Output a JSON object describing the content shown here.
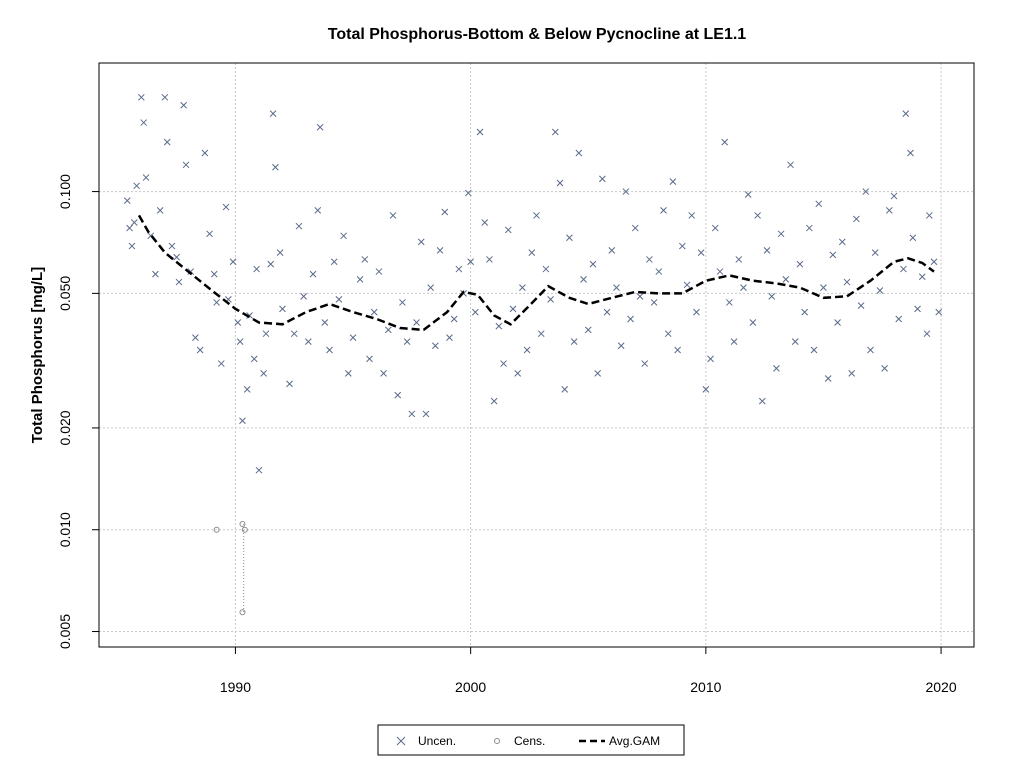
{
  "chart_data": {
    "type": "scatter",
    "title": "Total Phosphorus-Bottom & Below Pycnocline at LE1.1",
    "xlabel": "",
    "ylabel": "Total Phosphorus [mg/L]",
    "ylog": true,
    "xlim": [
      1984.2,
      2021.4
    ],
    "ylim": [
      0.0045,
      0.24
    ],
    "xticks": [
      1990,
      2000,
      2010,
      2020
    ],
    "xtick_labels": [
      "1990",
      "2000",
      "2010",
      "2020"
    ],
    "yticks": [
      0.005,
      0.01,
      0.02,
      0.05,
      0.1
    ],
    "ytick_labels": [
      "0.005",
      "0.010",
      "0.020",
      "0.050",
      "0.100"
    ],
    "grid": true,
    "legend": {
      "position": "bottom-center",
      "entries": [
        "Uncen.",
        "Cens.",
        "Avg.GAM"
      ]
    },
    "colors": {
      "uncensored": "#5a6a8a",
      "censored": "#8a8a8a",
      "gam": "#000000",
      "grid": "#c8c8c8"
    },
    "series": [
      {
        "name": "Uncen.",
        "marker": "x",
        "points": [
          [
            1985.4,
            0.094
          ],
          [
            1985.5,
            0.078
          ],
          [
            1985.6,
            0.069
          ],
          [
            1985.7,
            0.081
          ],
          [
            1985.8,
            0.104
          ],
          [
            1986.0,
            0.19
          ],
          [
            1986.1,
            0.16
          ],
          [
            1986.2,
            0.11
          ],
          [
            1986.4,
            0.074
          ],
          [
            1986.6,
            0.057
          ],
          [
            1986.8,
            0.088
          ],
          [
            1987.0,
            0.19
          ],
          [
            1987.1,
            0.14
          ],
          [
            1987.3,
            0.069
          ],
          [
            1987.5,
            0.064
          ],
          [
            1987.6,
            0.054
          ],
          [
            1987.8,
            0.18
          ],
          [
            1987.9,
            0.12
          ],
          [
            1988.1,
            0.058
          ],
          [
            1988.3,
            0.037
          ],
          [
            1988.5,
            0.034
          ],
          [
            1988.7,
            0.13
          ],
          [
            1988.9,
            0.075
          ],
          [
            1989.1,
            0.057
          ],
          [
            1989.2,
            0.047
          ],
          [
            1989.4,
            0.031
          ],
          [
            1989.6,
            0.09
          ],
          [
            1989.7,
            0.048
          ],
          [
            1989.9,
            0.062
          ],
          [
            1990.1,
            0.041
          ],
          [
            1990.2,
            0.036
          ],
          [
            1990.3,
            0.021
          ],
          [
            1990.5,
            0.026
          ],
          [
            1990.6,
            0.043
          ],
          [
            1990.8,
            0.032
          ],
          [
            1990.9,
            0.059
          ],
          [
            1991.0,
            0.015
          ],
          [
            1991.2,
            0.029
          ],
          [
            1991.3,
            0.038
          ],
          [
            1991.5,
            0.061
          ],
          [
            1991.6,
            0.17
          ],
          [
            1991.7,
            0.118
          ],
          [
            1991.9,
            0.066
          ],
          [
            1992.0,
            0.045
          ],
          [
            1992.3,
            0.027
          ],
          [
            1992.5,
            0.038
          ],
          [
            1992.7,
            0.079
          ],
          [
            1992.9,
            0.049
          ],
          [
            1993.1,
            0.036
          ],
          [
            1993.3,
            0.057
          ],
          [
            1993.5,
            0.088
          ],
          [
            1993.6,
            0.155
          ],
          [
            1993.8,
            0.041
          ],
          [
            1994.0,
            0.034
          ],
          [
            1994.2,
            0.062
          ],
          [
            1994.4,
            0.048
          ],
          [
            1994.6,
            0.074
          ],
          [
            1994.8,
            0.029
          ],
          [
            1995.0,
            0.037
          ],
          [
            1995.3,
            0.055
          ],
          [
            1995.5,
            0.063
          ],
          [
            1995.7,
            0.032
          ],
          [
            1995.9,
            0.044
          ],
          [
            1996.1,
            0.058
          ],
          [
            1996.3,
            0.029
          ],
          [
            1996.5,
            0.039
          ],
          [
            1996.7,
            0.085
          ],
          [
            1996.9,
            0.025
          ],
          [
            1997.1,
            0.047
          ],
          [
            1997.3,
            0.036
          ],
          [
            1997.5,
            0.022
          ],
          [
            1997.7,
            0.041
          ],
          [
            1997.9,
            0.071
          ],
          [
            1998.1,
            0.022
          ],
          [
            1998.3,
            0.052
          ],
          [
            1998.5,
            0.035
          ],
          [
            1998.7,
            0.067
          ],
          [
            1998.9,
            0.087
          ],
          [
            1999.1,
            0.037
          ],
          [
            1999.3,
            0.042
          ],
          [
            1999.5,
            0.059
          ],
          [
            1999.7,
            0.05
          ],
          [
            1999.9,
            0.099
          ],
          [
            2000.0,
            0.062
          ],
          [
            2000.2,
            0.044
          ],
          [
            2000.4,
            0.15
          ],
          [
            2000.6,
            0.081
          ],
          [
            2000.8,
            0.063
          ],
          [
            2001.0,
            0.024
          ],
          [
            2001.2,
            0.04
          ],
          [
            2001.4,
            0.031
          ],
          [
            2001.6,
            0.077
          ],
          [
            2001.8,
            0.045
          ],
          [
            2002.0,
            0.029
          ],
          [
            2002.2,
            0.052
          ],
          [
            2002.4,
            0.034
          ],
          [
            2002.6,
            0.066
          ],
          [
            2002.8,
            0.085
          ],
          [
            2003.0,
            0.038
          ],
          [
            2003.2,
            0.059
          ],
          [
            2003.4,
            0.048
          ],
          [
            2003.6,
            0.15
          ],
          [
            2003.8,
            0.106
          ],
          [
            2004.0,
            0.026
          ],
          [
            2004.2,
            0.073
          ],
          [
            2004.4,
            0.036
          ],
          [
            2004.6,
            0.13
          ],
          [
            2004.8,
            0.055
          ],
          [
            2005.0,
            0.039
          ],
          [
            2005.2,
            0.061
          ],
          [
            2005.4,
            0.029
          ],
          [
            2005.6,
            0.109
          ],
          [
            2005.8,
            0.044
          ],
          [
            2006.0,
            0.067
          ],
          [
            2006.2,
            0.052
          ],
          [
            2006.4,
            0.035
          ],
          [
            2006.6,
            0.1
          ],
          [
            2006.8,
            0.042
          ],
          [
            2007.0,
            0.078
          ],
          [
            2007.2,
            0.049
          ],
          [
            2007.4,
            0.031
          ],
          [
            2007.6,
            0.063
          ],
          [
            2007.8,
            0.047
          ],
          [
            2008.0,
            0.058
          ],
          [
            2008.2,
            0.088
          ],
          [
            2008.4,
            0.038
          ],
          [
            2008.6,
            0.107
          ],
          [
            2008.8,
            0.034
          ],
          [
            2009.0,
            0.069
          ],
          [
            2009.2,
            0.053
          ],
          [
            2009.4,
            0.085
          ],
          [
            2009.6,
            0.044
          ],
          [
            2009.8,
            0.066
          ],
          [
            2010.0,
            0.026
          ],
          [
            2010.2,
            0.032
          ],
          [
            2010.4,
            0.078
          ],
          [
            2010.6,
            0.058
          ],
          [
            2010.8,
            0.14
          ],
          [
            2011.0,
            0.047
          ],
          [
            2011.2,
            0.036
          ],
          [
            2011.4,
            0.063
          ],
          [
            2011.6,
            0.052
          ],
          [
            2011.8,
            0.098
          ],
          [
            2012.0,
            0.041
          ],
          [
            2012.2,
            0.085
          ],
          [
            2012.4,
            0.024
          ],
          [
            2012.6,
            0.067
          ],
          [
            2012.8,
            0.049
          ],
          [
            2013.0,
            0.03
          ],
          [
            2013.2,
            0.075
          ],
          [
            2013.4,
            0.055
          ],
          [
            2013.6,
            0.12
          ],
          [
            2013.8,
            0.036
          ],
          [
            2014.0,
            0.061
          ],
          [
            2014.2,
            0.044
          ],
          [
            2014.4,
            0.078
          ],
          [
            2014.6,
            0.034
          ],
          [
            2014.8,
            0.092
          ],
          [
            2015.0,
            0.052
          ],
          [
            2015.2,
            0.028
          ],
          [
            2015.4,
            0.065
          ],
          [
            2015.6,
            0.041
          ],
          [
            2015.8,
            0.071
          ],
          [
            2016.0,
            0.054
          ],
          [
            2016.2,
            0.029
          ],
          [
            2016.4,
            0.083
          ],
          [
            2016.6,
            0.046
          ],
          [
            2016.8,
            0.1
          ],
          [
            2017.0,
            0.034
          ],
          [
            2017.2,
            0.066
          ],
          [
            2017.4,
            0.051
          ],
          [
            2017.6,
            0.03
          ],
          [
            2017.8,
            0.088
          ],
          [
            2018.0,
            0.097
          ],
          [
            2018.2,
            0.042
          ],
          [
            2018.4,
            0.059
          ],
          [
            2018.5,
            0.17
          ],
          [
            2018.7,
            0.13
          ],
          [
            2018.8,
            0.073
          ],
          [
            2019.0,
            0.045
          ],
          [
            2019.2,
            0.056
          ],
          [
            2019.4,
            0.038
          ],
          [
            2019.5,
            0.085
          ],
          [
            2019.7,
            0.062
          ],
          [
            2019.9,
            0.044
          ]
        ]
      },
      {
        "name": "Cens.",
        "marker": "o",
        "points": [
          [
            1989.2,
            0.01
          ],
          [
            1990.3,
            0.0104
          ],
          [
            1990.4,
            0.01
          ],
          [
            1990.3,
            0.0057
          ]
        ]
      },
      {
        "name": "Avg.GAM",
        "type": "line",
        "points": [
          [
            1985.9,
            0.085
          ],
          [
            1986.3,
            0.076
          ],
          [
            1987.0,
            0.066
          ],
          [
            1988.0,
            0.058
          ],
          [
            1989.0,
            0.051
          ],
          [
            1990.0,
            0.045
          ],
          [
            1991.0,
            0.041
          ],
          [
            1992.0,
            0.0405
          ],
          [
            1993.0,
            0.044
          ],
          [
            1994.0,
            0.0465
          ],
          [
            1995.0,
            0.044
          ],
          [
            1996.0,
            0.042
          ],
          [
            1997.0,
            0.0395
          ],
          [
            1998.0,
            0.039
          ],
          [
            1999.0,
            0.044
          ],
          [
            1999.7,
            0.0505
          ],
          [
            2000.3,
            0.0495
          ],
          [
            2001.0,
            0.043
          ],
          [
            2001.7,
            0.0405
          ],
          [
            2002.5,
            0.046
          ],
          [
            2003.3,
            0.0525
          ],
          [
            2004.2,
            0.0485
          ],
          [
            2005.0,
            0.0465
          ],
          [
            2006.0,
            0.0485
          ],
          [
            2007.0,
            0.0505
          ],
          [
            2008.0,
            0.05
          ],
          [
            2009.0,
            0.05
          ],
          [
            2010.0,
            0.0545
          ],
          [
            2011.0,
            0.0565
          ],
          [
            2012.0,
            0.0545
          ],
          [
            2013.0,
            0.0535
          ],
          [
            2014.0,
            0.052
          ],
          [
            2015.0,
            0.0485
          ],
          [
            2016.0,
            0.049
          ],
          [
            2017.0,
            0.0545
          ],
          [
            2018.0,
            0.062
          ],
          [
            2018.6,
            0.0635
          ],
          [
            2019.2,
            0.0615
          ],
          [
            2019.7,
            0.058
          ]
        ]
      }
    ]
  }
}
